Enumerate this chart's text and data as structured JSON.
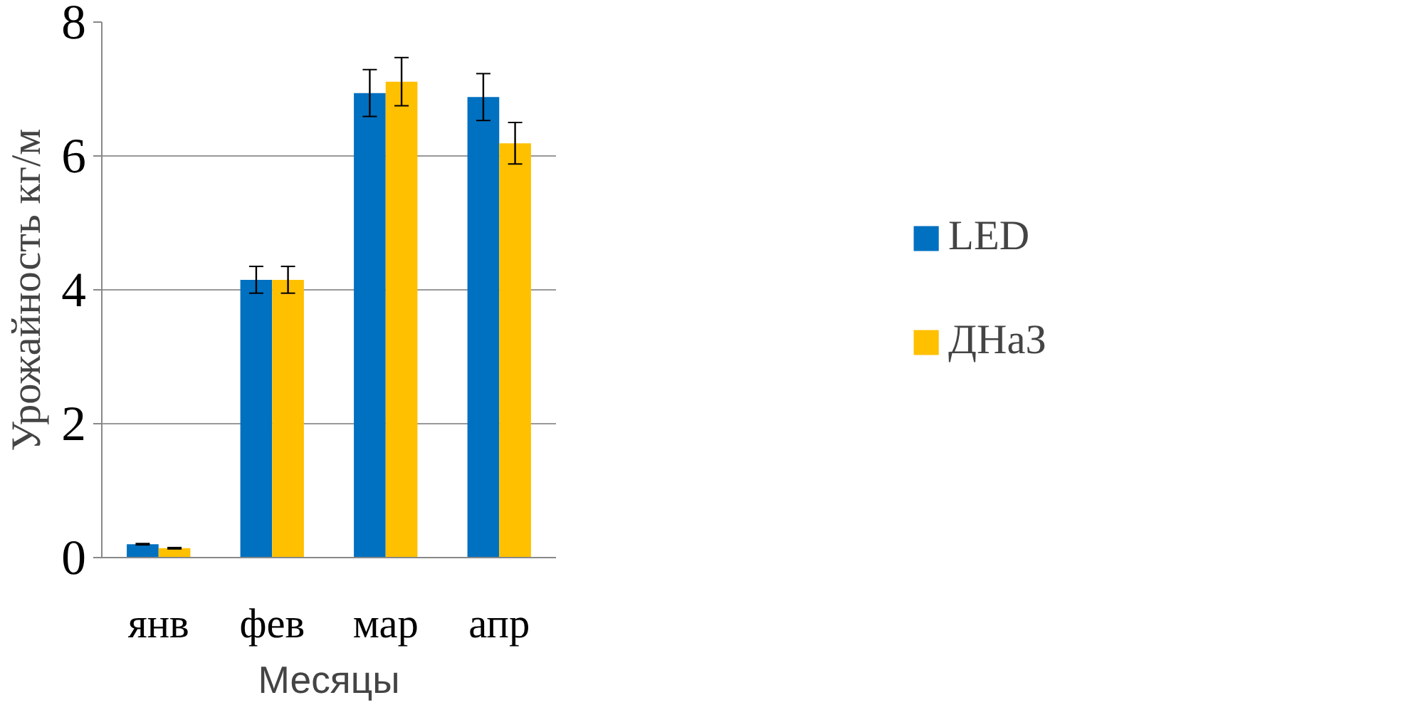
{
  "chart_data": {
    "type": "bar",
    "xlabel": "Месяцы",
    "ylabel": "Урожайность кг/м",
    "categories": [
      "янв",
      "фев",
      "мар",
      "апр"
    ],
    "series": [
      {
        "name": "LED",
        "color": "#0070c0",
        "values": [
          0.2,
          4.15,
          6.94,
          6.88
        ],
        "errors": [
          0.01,
          0.2,
          0.35,
          0.35
        ]
      },
      {
        "name": "ДНаЗ",
        "color": "#ffc000",
        "values": [
          0.14,
          4.15,
          7.11,
          6.19
        ],
        "errors": [
          0.01,
          0.2,
          0.36,
          0.31
        ]
      }
    ],
    "ylim": [
      0,
      8
    ],
    "yticks": [
      0,
      2,
      4,
      6,
      8
    ],
    "grid": "y",
    "legend": "right"
  }
}
